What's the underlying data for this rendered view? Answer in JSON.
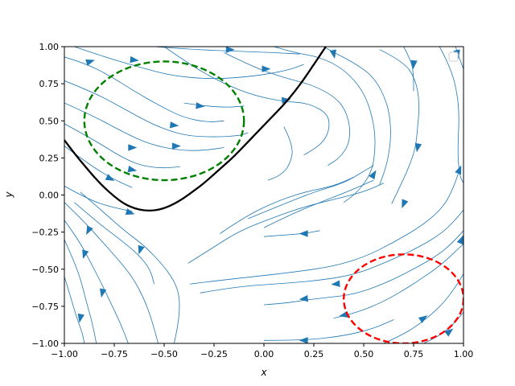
{
  "chart_data": {
    "type": "streamplot",
    "title": "",
    "xlabel": "x",
    "ylabel": "y",
    "xlim": [
      -1.0,
      1.0
    ],
    "ylim": [
      -1.0,
      1.0
    ],
    "xticks": [
      -1.0,
      -0.75,
      -0.5,
      -0.25,
      0.0,
      0.25,
      0.5,
      0.75,
      1.0
    ],
    "xtick_labels": [
      "−1.00",
      "−0.75",
      "−0.50",
      "−0.25",
      "0.00",
      "0.25",
      "0.50",
      "0.75",
      "1.00"
    ],
    "yticks": [
      1.0,
      0.75,
      0.5,
      0.25,
      0.0,
      -0.25,
      -0.5,
      -0.75,
      -1.0
    ],
    "ytick_labels": [
      "1.00",
      "0.75",
      "0.50",
      "0.25",
      "0.00",
      "−0.25",
      "−0.50",
      "−0.75",
      "−1.00"
    ],
    "grid": false,
    "legend": {
      "placement": "top-right",
      "entries": []
    },
    "colors": {
      "stream": "#1f77b4",
      "curve": "#000000",
      "circle_green": "#008000",
      "circle_red": "#ff0000"
    },
    "streamlines": [
      [
        [
          -1.0,
          0.93
        ],
        [
          -0.9,
          0.89
        ],
        [
          -0.78,
          0.81
        ],
        [
          -0.65,
          0.7
        ],
        [
          -0.52,
          0.6
        ],
        [
          -0.4,
          0.52
        ],
        [
          -0.28,
          0.49
        ],
        [
          -0.2,
          0.5
        ]
      ],
      [
        [
          -1.0,
          0.77
        ],
        [
          -0.85,
          0.69
        ],
        [
          -0.7,
          0.58
        ],
        [
          -0.55,
          0.47
        ],
        [
          -0.4,
          0.4
        ],
        [
          -0.25,
          0.39
        ],
        [
          -0.12,
          0.4
        ],
        [
          -0.08,
          0.42
        ]
      ],
      [
        [
          -1.0,
          0.62
        ],
        [
          -0.85,
          0.53
        ],
        [
          -0.7,
          0.42
        ],
        [
          -0.57,
          0.34
        ],
        [
          -0.42,
          0.3
        ],
        [
          -0.3,
          0.3
        ],
        [
          -0.2,
          0.32
        ]
      ],
      [
        [
          -1.0,
          0.48
        ],
        [
          -0.85,
          0.37
        ],
        [
          -0.72,
          0.26
        ],
        [
          -0.62,
          0.2
        ],
        [
          -0.52,
          0.18
        ],
        [
          -0.42,
          0.19
        ]
      ],
      [
        [
          -1.0,
          0.33
        ],
        [
          -0.88,
          0.21
        ],
        [
          -0.76,
          0.11
        ],
        [
          -0.66,
          0.05
        ]
      ],
      [
        [
          -0.95,
          1.0
        ],
        [
          -0.82,
          0.94
        ],
        [
          -0.62,
          0.86
        ],
        [
          -0.45,
          0.8
        ],
        [
          -0.25,
          0.78
        ],
        [
          -0.05,
          0.8
        ],
        [
          0.12,
          0.84
        ],
        [
          0.2,
          0.88
        ]
      ],
      [
        [
          -0.55,
          1.0
        ],
        [
          -0.35,
          0.98
        ],
        [
          -0.15,
          0.97
        ],
        [
          0.05,
          0.96
        ],
        [
          0.18,
          0.95
        ]
      ],
      [
        [
          -0.4,
          0.62
        ],
        [
          -0.3,
          0.6
        ],
        [
          -0.18,
          0.59
        ],
        [
          -0.1,
          0.6
        ]
      ],
      [
        [
          -1.0,
          0.06
        ],
        [
          -0.88,
          -0.03
        ],
        [
          -0.77,
          -0.08
        ],
        [
          -0.66,
          -0.11
        ]
      ],
      [
        [
          -1.0,
          -0.05
        ],
        [
          -0.9,
          -0.18
        ],
        [
          -0.82,
          -0.3
        ],
        [
          -0.74,
          -0.42
        ],
        [
          -0.66,
          -0.55
        ],
        [
          -0.6,
          -0.7
        ],
        [
          -0.56,
          -0.85
        ],
        [
          -0.53,
          -1.0
        ]
      ],
      [
        [
          -1.0,
          -0.17
        ],
        [
          -0.93,
          -0.3
        ],
        [
          -0.87,
          -0.45
        ],
        [
          -0.82,
          -0.58
        ],
        [
          -0.77,
          -0.72
        ],
        [
          -0.72,
          -0.86
        ],
        [
          -0.68,
          -1.0
        ]
      ],
      [
        [
          -1.0,
          -0.3
        ],
        [
          -0.96,
          -0.42
        ],
        [
          -0.92,
          -0.56
        ],
        [
          -0.89,
          -0.72
        ],
        [
          -0.86,
          -0.86
        ],
        [
          -0.84,
          -1.0
        ]
      ],
      [
        [
          -1.0,
          -0.55
        ],
        [
          -0.97,
          -0.68
        ],
        [
          -0.94,
          -0.82
        ],
        [
          -0.91,
          -0.93
        ],
        [
          -0.9,
          -1.0
        ]
      ],
      [
        [
          -0.92,
          0.02
        ],
        [
          -0.8,
          -0.12
        ],
        [
          -0.7,
          -0.24
        ],
        [
          -0.6,
          -0.34
        ],
        [
          -0.5,
          -0.48
        ],
        [
          -0.44,
          -0.6
        ],
        [
          -0.42,
          -0.72
        ],
        [
          -0.43,
          -0.87
        ],
        [
          -0.45,
          -1.0
        ]
      ],
      [
        [
          -0.95,
          -0.05
        ],
        [
          -0.82,
          -0.2
        ],
        [
          -0.72,
          -0.3
        ],
        [
          -0.63,
          -0.4
        ],
        [
          -0.57,
          -0.5
        ],
        [
          -0.55,
          -0.6
        ]
      ],
      [
        [
          -0.38,
          -0.46
        ],
        [
          -0.25,
          -0.35
        ],
        [
          -0.12,
          -0.24
        ],
        [
          0.05,
          -0.15
        ],
        [
          0.2,
          -0.08
        ],
        [
          0.35,
          -0.03
        ],
        [
          0.5,
          0.02
        ],
        [
          0.6,
          0.08
        ]
      ],
      [
        [
          -0.22,
          -0.26
        ],
        [
          -0.1,
          -0.15
        ],
        [
          0.05,
          -0.05
        ],
        [
          0.2,
          0.02
        ],
        [
          0.35,
          0.06
        ],
        [
          0.45,
          0.12
        ]
      ],
      [
        [
          0.0,
          -0.22
        ],
        [
          0.15,
          -0.12
        ],
        [
          0.3,
          -0.04
        ],
        [
          0.45,
          0.04
        ],
        [
          0.55,
          0.1
        ]
      ],
      [
        [
          -0.08,
          -0.16
        ],
        [
          0.1,
          -0.06
        ],
        [
          0.25,
          0.02
        ],
        [
          0.4,
          0.08
        ],
        [
          0.5,
          0.16
        ],
        [
          0.55,
          0.2
        ]
      ],
      [
        [
          -0.37,
          -0.6
        ],
        [
          -0.25,
          -0.58
        ],
        [
          -0.05,
          -0.55
        ],
        [
          0.15,
          -0.52
        ],
        [
          0.35,
          -0.48
        ],
        [
          0.5,
          -0.42
        ],
        [
          0.65,
          -0.32
        ],
        [
          0.8,
          -0.2
        ],
        [
          0.9,
          -0.08
        ],
        [
          0.95,
          0.05
        ],
        [
          0.98,
          0.17
        ]
      ],
      [
        [
          -0.32,
          -0.66
        ],
        [
          -0.15,
          -0.62
        ],
        [
          0.05,
          -0.6
        ],
        [
          0.25,
          -0.58
        ],
        [
          0.45,
          -0.54
        ],
        [
          0.62,
          -0.45
        ],
        [
          0.78,
          -0.35
        ],
        [
          0.9,
          -0.25
        ],
        [
          0.97,
          -0.15
        ],
        [
          1.0,
          -0.1
        ]
      ],
      [
        [
          0.0,
          -0.28
        ],
        [
          0.1,
          -0.27
        ],
        [
          0.2,
          -0.26
        ],
        [
          0.28,
          -0.24
        ]
      ],
      [
        [
          0.0,
          -0.74
        ],
        [
          0.1,
          -0.73
        ],
        [
          0.2,
          -0.71
        ],
        [
          0.32,
          -0.69
        ],
        [
          0.45,
          -0.67
        ],
        [
          0.6,
          -0.6
        ],
        [
          0.75,
          -0.5
        ],
        [
          0.88,
          -0.4
        ],
        [
          0.96,
          -0.3
        ],
        [
          1.0,
          -0.24
        ]
      ],
      [
        [
          0.35,
          -0.83
        ],
        [
          0.45,
          -0.8
        ],
        [
          0.6,
          -0.72
        ],
        [
          0.75,
          -0.6
        ],
        [
          0.88,
          -0.48
        ],
        [
          0.96,
          -0.38
        ],
        [
          1.0,
          -0.33
        ]
      ],
      [
        [
          0.6,
          -1.0
        ],
        [
          0.7,
          -0.94
        ],
        [
          0.8,
          -0.85
        ],
        [
          0.9,
          -0.73
        ],
        [
          0.97,
          -0.6
        ],
        [
          1.0,
          -0.53
        ]
      ],
      [
        [
          0.8,
          -1.0
        ],
        [
          0.88,
          -0.95
        ],
        [
          0.95,
          -0.87
        ],
        [
          1.0,
          -0.79
        ]
      ],
      [
        [
          0.0,
          -0.98
        ],
        [
          0.2,
          -0.98
        ],
        [
          0.4,
          -0.95
        ],
        [
          0.55,
          -0.9
        ],
        [
          0.65,
          -0.84
        ]
      ],
      [
        [
          -0.5,
          1.0
        ],
        [
          -0.35,
          0.86
        ],
        [
          -0.2,
          0.75
        ],
        [
          -0.05,
          0.67
        ],
        [
          0.1,
          0.63
        ],
        [
          0.22,
          0.62
        ],
        [
          0.32,
          0.55
        ],
        [
          0.33,
          0.45
        ],
        [
          0.3,
          0.36
        ],
        [
          0.24,
          0.3
        ],
        [
          0.2,
          0.27
        ]
      ],
      [
        [
          -0.2,
          0.96
        ],
        [
          -0.05,
          0.86
        ],
        [
          0.1,
          0.79
        ],
        [
          0.25,
          0.74
        ],
        [
          0.38,
          0.64
        ],
        [
          0.43,
          0.5
        ],
        [
          0.43,
          0.35
        ],
        [
          0.38,
          0.25
        ],
        [
          0.32,
          0.2
        ]
      ],
      [
        [
          0.05,
          1.0
        ],
        [
          0.15,
          0.96
        ],
        [
          0.28,
          0.93
        ],
        [
          0.4,
          0.85
        ],
        [
          0.5,
          0.7
        ],
        [
          0.55,
          0.5
        ],
        [
          0.56,
          0.32
        ],
        [
          0.54,
          0.15
        ],
        [
          0.47,
          0.02
        ],
        [
          0.4,
          -0.05
        ]
      ],
      [
        [
          0.1,
          0.46
        ],
        [
          0.15,
          0.33
        ],
        [
          0.13,
          0.2
        ],
        [
          0.08,
          0.13
        ],
        [
          0.02,
          0.1
        ]
      ],
      [
        [
          0.3,
          1.0
        ],
        [
          0.35,
          0.96
        ],
        [
          0.44,
          0.9
        ],
        [
          0.55,
          0.8
        ],
        [
          0.62,
          0.62
        ],
        [
          0.64,
          0.42
        ],
        [
          0.62,
          0.22
        ],
        [
          0.58,
          0.07
        ]
      ],
      [
        [
          0.58,
          0.98
        ],
        [
          0.7,
          0.9
        ],
        [
          0.76,
          0.78
        ],
        [
          0.78,
          0.62
        ],
        [
          0.77,
          0.45
        ],
        [
          0.76,
          0.32
        ],
        [
          0.73,
          0.2
        ],
        [
          0.69,
          0.08
        ],
        [
          0.64,
          -0.06
        ]
      ],
      [
        [
          0.7,
          1.0
        ],
        [
          0.74,
          0.9
        ],
        [
          0.75,
          0.8
        ],
        [
          0.75,
          0.7
        ]
      ],
      [
        [
          0.88,
          1.0
        ],
        [
          0.92,
          0.9
        ],
        [
          0.96,
          0.75
        ],
        [
          0.98,
          0.55
        ],
        [
          0.97,
          0.3
        ],
        [
          0.98,
          0.13
        ],
        [
          1.0,
          0.08
        ]
      ],
      [
        [
          0.96,
          1.0
        ],
        [
          0.98,
          0.92
        ],
        [
          1.0,
          0.85
        ]
      ]
    ],
    "arrows": [
      [
        -0.87,
        0.9,
        0.0,
        1.0,
        0.3
      ],
      [
        -0.65,
        0.91,
        0.0,
        1.0,
        -0.1
      ],
      [
        -0.17,
        0.98,
        0.0,
        1.0,
        0.0
      ],
      [
        0.01,
        0.85,
        0.0,
        1.0,
        0.0
      ],
      [
        0.35,
        0.95,
        0.0,
        0.2,
        -1.0
      ],
      [
        0.75,
        0.88,
        0.0,
        -0.1,
        -1.0
      ],
      [
        0.97,
        0.95,
        0.0,
        0.2,
        -1.0
      ],
      [
        0.11,
        0.64,
        0.0,
        1.0,
        0.1
      ],
      [
        -0.32,
        0.6,
        0.0,
        1.0,
        -0.1
      ],
      [
        -0.45,
        0.47,
        0.0,
        1.0,
        -0.1
      ],
      [
        -0.66,
        0.32,
        0.0,
        1.0,
        0.0
      ],
      [
        -0.44,
        0.33,
        0.0,
        1.0,
        0.0
      ],
      [
        -0.66,
        0.17,
        0.0,
        1.0,
        -0.2
      ],
      [
        -0.77,
        0.11,
        0.0,
        1.0,
        -0.5
      ],
      [
        -0.67,
        -0.12,
        0.0,
        1.0,
        -0.3
      ],
      [
        -0.88,
        -0.24,
        0.0,
        -0.5,
        -1.0
      ],
      [
        -0.9,
        -0.4,
        0.0,
        -0.3,
        -1.0
      ],
      [
        -0.62,
        -0.37,
        0.0,
        -0.3,
        -1.0
      ],
      [
        -0.81,
        -0.66,
        0.0,
        -0.2,
        -1.0
      ],
      [
        -0.92,
        -0.83,
        0.0,
        -0.2,
        -1.0
      ],
      [
        0.2,
        -0.26,
        0.0,
        -1.0,
        0.0
      ],
      [
        0.55,
        0.14,
        0.0,
        0.6,
        1.0
      ],
      [
        0.77,
        0.32,
        0.0,
        -0.2,
        -1.0
      ],
      [
        0.7,
        -0.06,
        0.0,
        -0.4,
        -1.0
      ],
      [
        0.98,
        0.17,
        0.0,
        0.4,
        1.0
      ],
      [
        0.99,
        -0.3,
        0.0,
        0.4,
        1.0
      ],
      [
        0.36,
        -0.6,
        0.0,
        -1.0,
        -0.1
      ],
      [
        0.2,
        -0.7,
        0.0,
        -1.0,
        -0.1
      ],
      [
        0.4,
        -0.81,
        0.0,
        -1.0,
        -0.2
      ],
      [
        0.8,
        -0.83,
        0.0,
        1.0,
        0.7
      ],
      [
        0.93,
        -0.92,
        0.0,
        1.0,
        0.8
      ],
      [
        0.2,
        -0.98,
        0.0,
        -1.0,
        0.0
      ]
    ],
    "curve": [
      [
        -1.0,
        0.37
      ],
      [
        -0.95,
        0.28
      ],
      [
        -0.9,
        0.2
      ],
      [
        -0.85,
        0.12
      ],
      [
        -0.8,
        0.05
      ],
      [
        -0.75,
        -0.01
      ],
      [
        -0.7,
        -0.06
      ],
      [
        -0.65,
        -0.09
      ],
      [
        -0.6,
        -0.105
      ],
      [
        -0.55,
        -0.105
      ],
      [
        -0.5,
        -0.09
      ],
      [
        -0.45,
        -0.06
      ],
      [
        -0.4,
        -0.02
      ],
      [
        -0.35,
        0.03
      ],
      [
        -0.3,
        0.08
      ],
      [
        -0.25,
        0.14
      ],
      [
        -0.2,
        0.2
      ],
      [
        -0.15,
        0.26
      ],
      [
        -0.1,
        0.33
      ],
      [
        -0.05,
        0.4
      ],
      [
        0.0,
        0.47
      ],
      [
        0.05,
        0.54
      ],
      [
        0.1,
        0.61
      ],
      [
        0.15,
        0.69
      ],
      [
        0.2,
        0.78
      ],
      [
        0.25,
        0.88
      ],
      [
        0.29,
        0.96
      ],
      [
        0.31,
        1.0
      ]
    ],
    "circles": [
      {
        "cx": -0.5,
        "cy": 0.5,
        "r": 0.4,
        "color": "circle_green"
      },
      {
        "cx": 0.7,
        "cy": -0.7,
        "r": 0.3,
        "color": "circle_red"
      }
    ]
  }
}
